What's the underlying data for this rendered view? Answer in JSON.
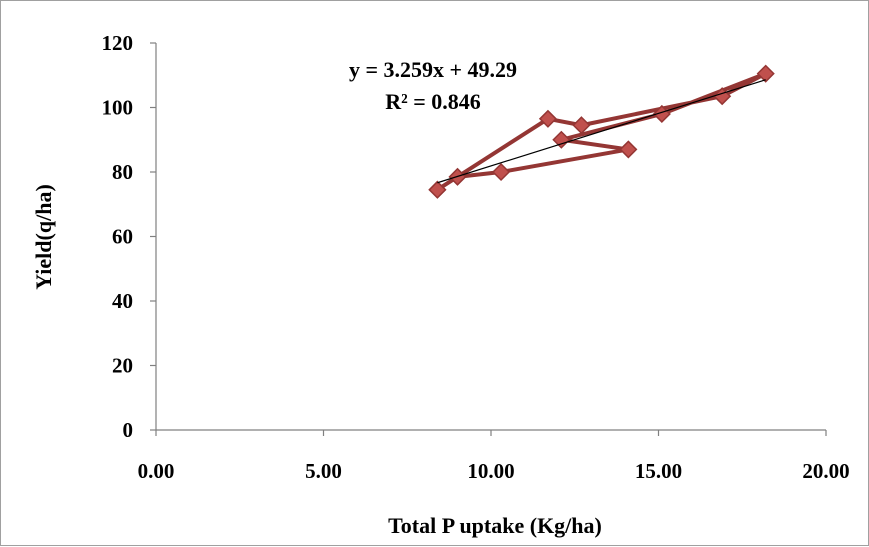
{
  "chart_data": {
    "type": "scatter",
    "xlabel": "Total P uptake (Kg/ha)",
    "ylabel": "Yield(q/ha)",
    "xlim": [
      0,
      20
    ],
    "ylim": [
      0,
      120
    ],
    "x_ticks": [
      "0.00",
      "5.00",
      "10.00",
      "15.00",
      "20.00"
    ],
    "y_ticks": [
      "0",
      "20",
      "40",
      "60",
      "80",
      "100",
      "120"
    ],
    "series": [
      {
        "color": "#943634",
        "marker": "diamond",
        "connected": true,
        "x": [
          8.4,
          9.0,
          10.3,
          14.1,
          12.1,
          15.1,
          18.2,
          16.9,
          12.7,
          11.7,
          8.4
        ],
        "y": [
          74.5,
          78.5,
          80.0,
          87.0,
          90.0,
          98.0,
          110.5,
          103.5,
          94.5,
          96.5,
          74.5
        ]
      }
    ],
    "trendline": {
      "type": "linear",
      "slope": 3.259,
      "intercept": 49.29,
      "r2": 0.846,
      "x_range": [
        8.4,
        18.2
      ],
      "color": "#000000"
    },
    "annotations": [
      "y = 3.259x + 49.29",
      "R² = 0.846"
    ],
    "legend": "none",
    "grid": false
  }
}
